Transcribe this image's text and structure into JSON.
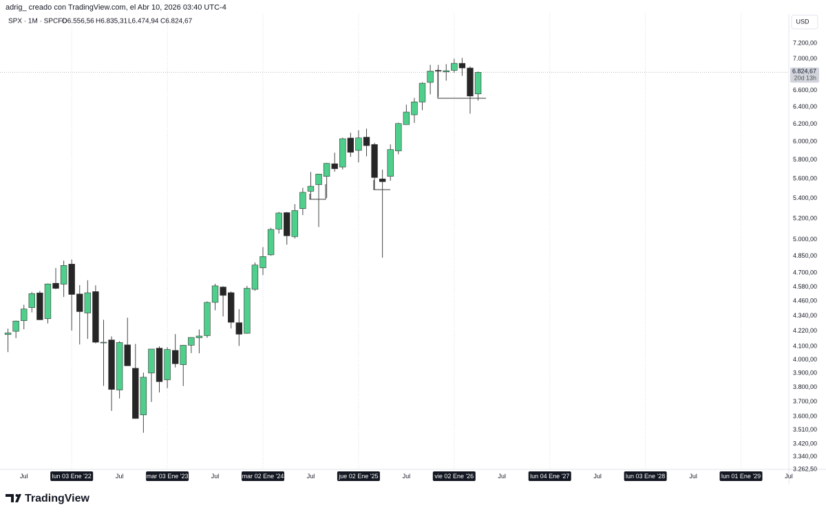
{
  "header": {
    "credit": "adrig_ creado con TradingView.com, el Abr 10, 2026 03:40 UTC-4",
    "symbol": "SPX · 1M · SPCFD",
    "ohlc": [
      "O6.556,56",
      "H6.835,31",
      "L6.474,94",
      "C6.824,67"
    ],
    "currency": "USD",
    "logo": "TradingView"
  },
  "chart_data": {
    "type": "candlestick",
    "log_scale": true,
    "up_color": "#4fcf8c",
    "down_color": "#262626",
    "x": [
      "2021-05",
      "2021-06",
      "2021-07",
      "2021-08",
      "2021-09",
      "2021-10",
      "2021-11",
      "2021-12",
      "2022-01",
      "2022-02",
      "2022-03",
      "2022-04",
      "2022-05",
      "2022-06",
      "2022-07",
      "2022-08",
      "2022-09",
      "2022-10",
      "2022-11",
      "2022-12",
      "2023-01",
      "2023-02",
      "2023-03",
      "2023-04",
      "2023-05",
      "2023-06",
      "2023-07",
      "2023-08",
      "2023-09",
      "2023-10",
      "2023-11",
      "2023-12",
      "2024-01",
      "2024-02",
      "2024-03",
      "2024-04",
      "2024-05",
      "2024-06",
      "2024-07",
      "2024-08",
      "2024-09",
      "2024-10",
      "2024-11",
      "2024-12",
      "2025-01",
      "2025-02",
      "2025-03",
      "2025-04",
      "2025-05",
      "2025-06",
      "2025-07",
      "2025-08",
      "2025-09",
      "2025-10",
      "2025-11",
      "2025-12",
      "2026-01",
      "2026-02",
      "2026-03",
      "2026-04"
    ],
    "open": [
      4192,
      4217,
      4301,
      4407,
      4529,
      4317,
      4611,
      4603,
      4778,
      4520,
      4363,
      4540,
      4131,
      4150,
      3781,
      4112,
      3937,
      3610,
      3902,
      4087,
      3853,
      4070,
      3963,
      4109,
      4167,
      4183,
      4450,
      4579,
      4531,
      4285,
      4201,
      4559,
      4745,
      4861,
      5099,
      5258,
      5029,
      5297,
      5471,
      5538,
      5624,
      5758,
      5723,
      6040,
      5903,
      6050,
      5968,
      5598,
      5625,
      5897,
      6193,
      6307,
      6458,
      6698,
      6850,
      6830,
      6850,
      6940,
      6880,
      6556.56
    ],
    "high": [
      4238,
      4302,
      4430,
      4537,
      4546,
      4608,
      4744,
      4809,
      4819,
      4595,
      4637,
      4593,
      4308,
      4178,
      4140,
      4325,
      4119,
      3905,
      4080,
      4101,
      4094,
      4195,
      4111,
      4170,
      4231,
      4458,
      4607,
      4585,
      4541,
      4394,
      4588,
      4793,
      4931,
      5111,
      5265,
      5264,
      5342,
      5506,
      5670,
      5652,
      5767,
      5878,
      6044,
      6100,
      6128,
      6147,
      5986,
      5695,
      5969,
      6215,
      6427,
      6508,
      6700,
      6920,
      6920,
      6930,
      7000,
      7010,
      6900,
      6835.31
    ],
    "low": [
      4057,
      4164,
      4233,
      4368,
      4306,
      4279,
      4560,
      4495,
      4223,
      4115,
      4158,
      4124,
      3810,
      3637,
      3722,
      3955,
      3584,
      3492,
      3698,
      3764,
      3794,
      3943,
      3809,
      4049,
      4048,
      4166,
      4385,
      4335,
      4239,
      4104,
      4198,
      4547,
      4682,
      4853,
      5057,
      4954,
      5011,
      5234,
      5391,
      5119,
      5403,
      5674,
      5697,
      5832,
      5773,
      5838,
      5489,
      4835,
      5579,
      5861,
      6193,
      6213,
      6361,
      6551,
      6521,
      6720,
      6820,
      6780,
      6320,
      6474.94
    ],
    "close": [
      4204,
      4298,
      4395,
      4523,
      4308,
      4605,
      4567,
      4766,
      4516,
      4374,
      4530,
      4132,
      4132,
      3785,
      4130,
      3955,
      3586,
      3872,
      4080,
      3840,
      4077,
      3970,
      4109,
      4169,
      4180,
      4450,
      4589,
      4508,
      4288,
      4194,
      4568,
      4770,
      4846,
      5096,
      5254,
      5036,
      5278,
      5460,
      5522,
      5648,
      5762,
      5705,
      6032,
      5882,
      6041,
      5955,
      5612,
      5569,
      5912,
      6205,
      6339,
      6460,
      6688,
      6840,
      6840,
      6845,
      6940,
      6880,
      6530,
      6824.67
    ],
    "last_price_label": "6.824,67",
    "countdown": "20d 13h",
    "xlim": [
      "2021-04",
      "2029-07"
    ],
    "xticks": [
      {
        "value": "2021-07",
        "label": "Jul"
      },
      {
        "value": "2022-01",
        "label": "lun 03 Ene '22"
      },
      {
        "value": "2022-07",
        "label": "Jul"
      },
      {
        "value": "2023-01",
        "label": "mar 03 Ene '23"
      },
      {
        "value": "2023-07",
        "label": "Jul"
      },
      {
        "value": "2024-01",
        "label": "mar 02 Ene '24"
      },
      {
        "value": "2024-07",
        "label": "Jul"
      },
      {
        "value": "2025-01",
        "label": "jue 02 Ene '25"
      },
      {
        "value": "2025-07",
        "label": "Jul"
      },
      {
        "value": "2026-01",
        "label": "vie 02 Ene '26"
      },
      {
        "value": "2026-07",
        "label": "Jul"
      },
      {
        "value": "2027-01",
        "label": "lun 04 Ene '27"
      },
      {
        "value": "2027-07",
        "label": "Jul"
      },
      {
        "value": "2028-01",
        "label": "lun 03 Ene '28"
      },
      {
        "value": "2028-07",
        "label": "Jul"
      },
      {
        "value": "2029-01",
        "label": "lun 01 Ene '29"
      },
      {
        "value": "2029-07",
        "label": "Jul"
      }
    ],
    "ylim": [
      3262.5,
      7610
    ],
    "yticks": [
      {
        "value": 7200,
        "label": "7.200,00"
      },
      {
        "value": 7000,
        "label": "7.000,00"
      },
      {
        "value": 6600,
        "label": "6.600,00"
      },
      {
        "value": 6400,
        "label": "6.400,00"
      },
      {
        "value": 6200,
        "label": "6.200,00"
      },
      {
        "value": 6000,
        "label": "6.000,00"
      },
      {
        "value": 5800,
        "label": "5.800,00"
      },
      {
        "value": 5600,
        "label": "5.600,00"
      },
      {
        "value": 5400,
        "label": "5.400,00"
      },
      {
        "value": 5200,
        "label": "5.200,00"
      },
      {
        "value": 5000,
        "label": "5.000,00"
      },
      {
        "value": 4850,
        "label": "4.850,00"
      },
      {
        "value": 4700,
        "label": "4.700,00"
      },
      {
        "value": 4580,
        "label": "4.580,00"
      },
      {
        "value": 4460,
        "label": "4.460,00"
      },
      {
        "value": 4340,
        "label": "4.340,00"
      },
      {
        "value": 4220,
        "label": "4.220,00"
      },
      {
        "value": 4100,
        "label": "4.100,00"
      },
      {
        "value": 4000,
        "label": "4.000,00"
      },
      {
        "value": 3900,
        "label": "3.900,00"
      },
      {
        "value": 3800,
        "label": "3.800,00"
      },
      {
        "value": 3700,
        "label": "3.700,00"
      },
      {
        "value": 3600,
        "label": "3.600,00"
      },
      {
        "value": 3510,
        "label": "3.510,00"
      },
      {
        "value": 3420,
        "label": "3.420,00"
      },
      {
        "value": 3340,
        "label": "3.340,00"
      },
      {
        "value": 3262.5,
        "label": "3.262,50"
      }
    ],
    "grid": true
  }
}
